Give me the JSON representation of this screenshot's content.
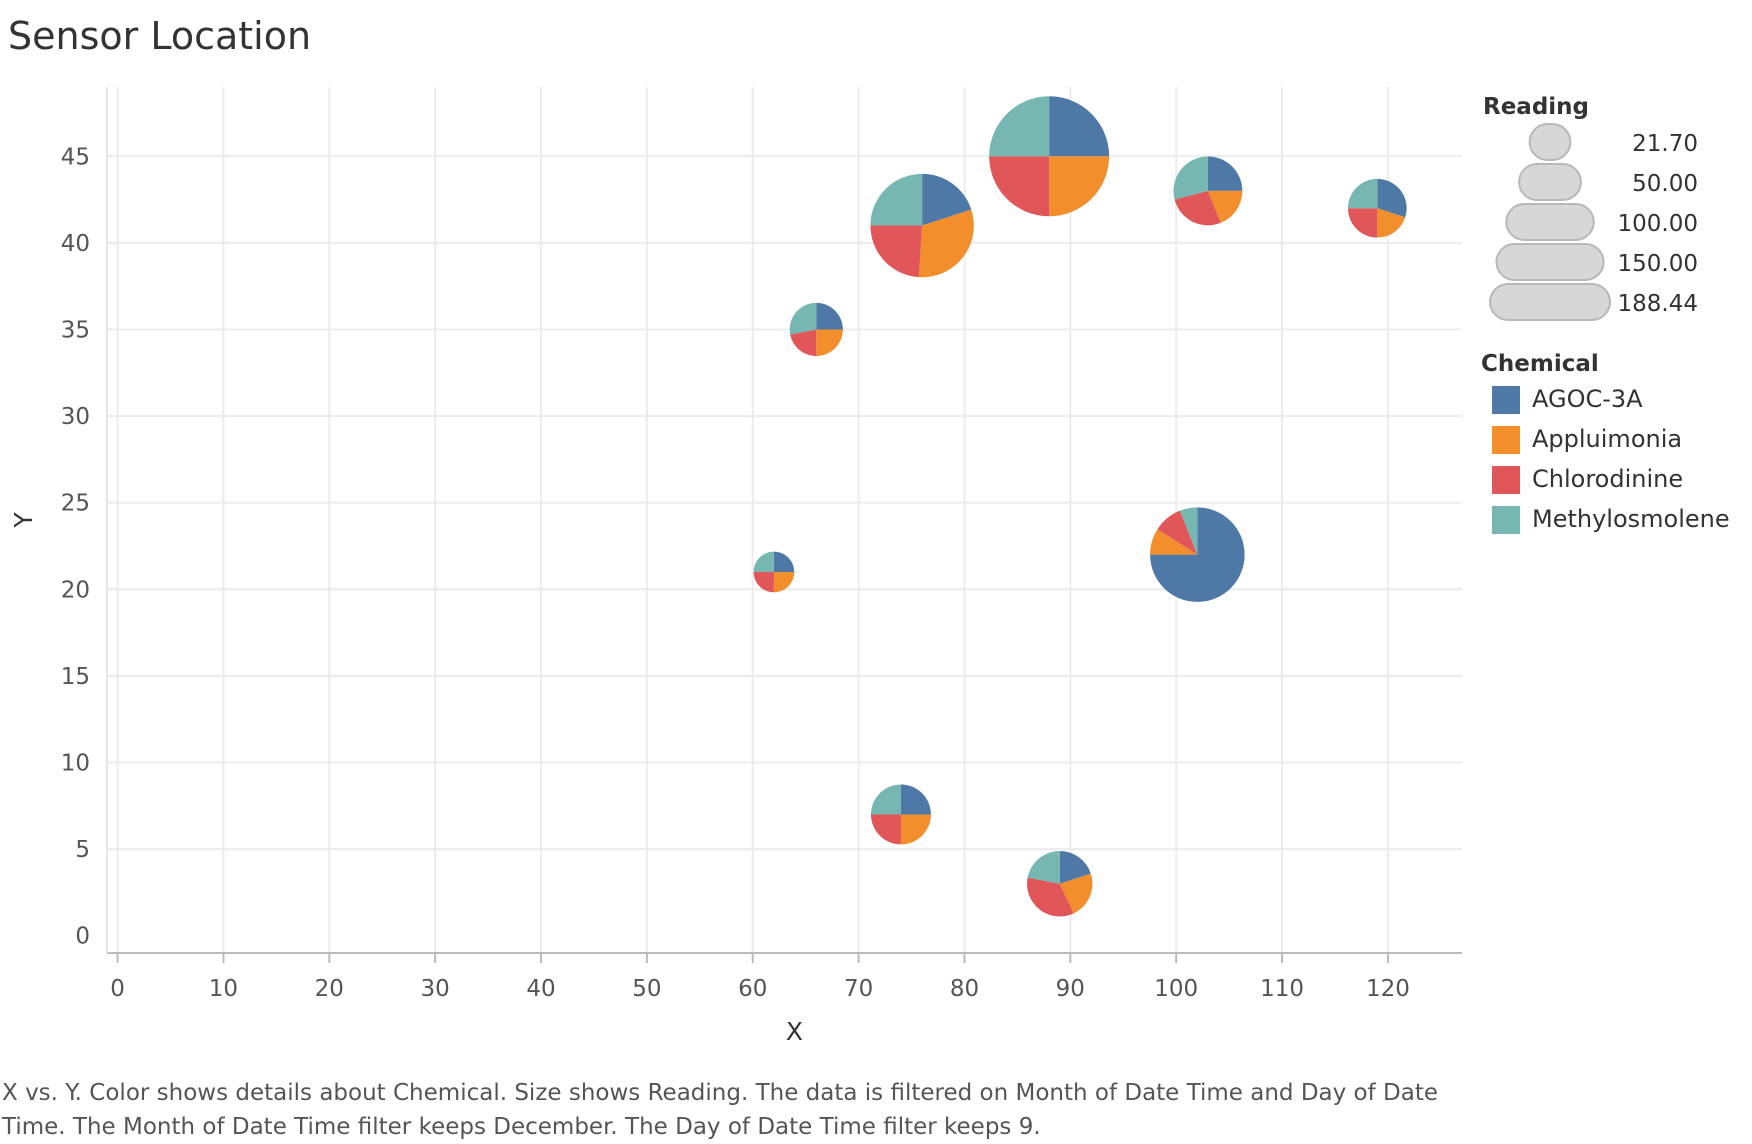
{
  "title": "Sensor Location",
  "caption": "X vs. Y.  Color shows details about Chemical.  Size shows Reading. The data is filtered on Month of Date Time and Day of Date Time. The Month of Date Time filter keeps December. The Day of Date Time filter keeps 9.",
  "legend": {
    "size_title": "Reading",
    "size_entries": [
      "21.70",
      "50.00",
      "100.00",
      "150.00",
      "188.44"
    ],
    "color_title": "Chemical",
    "color_entries": [
      {
        "label": "AGOC-3A",
        "color": "#4e79a7"
      },
      {
        "label": "Appluimonia",
        "color": "#f28e2b"
      },
      {
        "label": "Chlorodinine",
        "color": "#e15759"
      },
      {
        "label": "Methylosmolene",
        "color": "#76b7b2"
      }
    ]
  },
  "chart_data": {
    "type": "scatter",
    "subtype": "pie-markers",
    "xlabel": "X",
    "ylabel": "Y",
    "xlim": [
      -1,
      127
    ],
    "ylim": [
      -1,
      49
    ],
    "xticks": [
      0,
      10,
      20,
      30,
      40,
      50,
      60,
      70,
      80,
      90,
      100,
      110,
      120
    ],
    "yticks": [
      0,
      5,
      10,
      15,
      20,
      25,
      30,
      35,
      40,
      45
    ],
    "grid": true,
    "legend_position": "right",
    "series_colors": {
      "AGOC-3A": "#4e79a7",
      "Appluimonia": "#f28e2b",
      "Chlorodinine": "#e15759",
      "Methylosmolene": "#76b7b2"
    },
    "points": [
      {
        "x": 88,
        "y": 45,
        "reading": 188.44,
        "shares": {
          "AGOC-3A": 25,
          "Appluimonia": 25,
          "Chlorodinine": 25,
          "Methylosmolene": 25
        }
      },
      {
        "x": 76,
        "y": 41,
        "reading": 140,
        "shares": {
          "AGOC-3A": 20,
          "Appluimonia": 31,
          "Chlorodinine": 24,
          "Methylosmolene": 25
        }
      },
      {
        "x": 103,
        "y": 43,
        "reading": 62,
        "shares": {
          "AGOC-3A": 25,
          "Appluimonia": 19,
          "Chlorodinine": 27,
          "Methylosmolene": 29
        }
      },
      {
        "x": 119,
        "y": 42,
        "reading": 45,
        "shares": {
          "AGOC-3A": 30,
          "Appluimonia": 20,
          "Chlorodinine": 25,
          "Methylosmolene": 25
        }
      },
      {
        "x": 66,
        "y": 35,
        "reading": 37,
        "shares": {
          "AGOC-3A": 25,
          "Appluimonia": 25,
          "Chlorodinine": 22,
          "Methylosmolene": 28
        }
      },
      {
        "x": 62,
        "y": 21,
        "reading": 21.7,
        "shares": {
          "AGOC-3A": 25,
          "Appluimonia": 25,
          "Chlorodinine": 25,
          "Methylosmolene": 25
        }
      },
      {
        "x": 102,
        "y": 22,
        "reading": 117,
        "shares": {
          "AGOC-3A": 75,
          "Appluimonia": 9,
          "Chlorodinine": 10,
          "Methylosmolene": 6
        }
      },
      {
        "x": 74,
        "y": 7,
        "reading": 47,
        "shares": {
          "AGOC-3A": 25,
          "Appluimonia": 25,
          "Chlorodinine": 25,
          "Methylosmolene": 25
        }
      },
      {
        "x": 89,
        "y": 3,
        "reading": 56,
        "shares": {
          "AGOC-3A": 20,
          "Appluimonia": 23,
          "Chlorodinine": 35,
          "Methylosmolene": 22
        }
      }
    ]
  }
}
